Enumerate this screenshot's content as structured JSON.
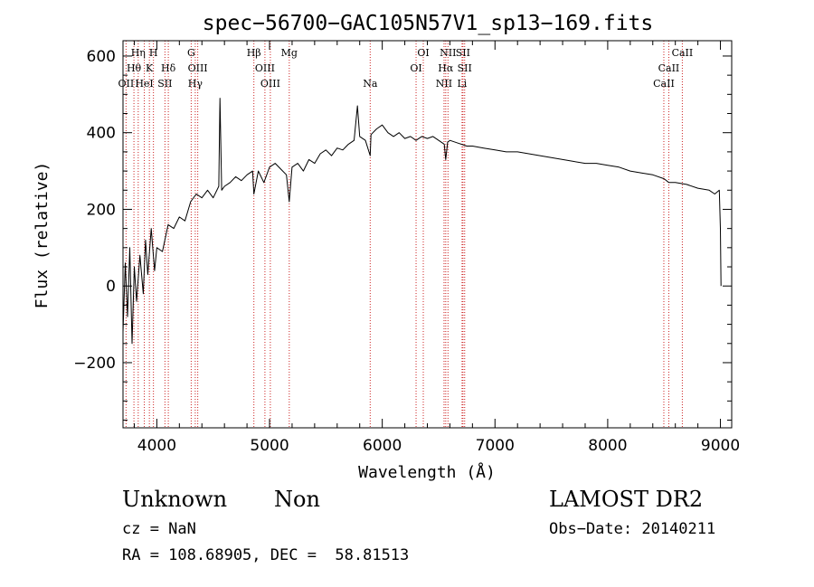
{
  "chart_data": {
    "type": "line",
    "title": "spec−56700−GAC105N57V1_sp13−169.fits",
    "xlabel": "Wavelength (Å)",
    "ylabel": "Flux (relative)",
    "xlim": [
      3700,
      9100
    ],
    "ylim": [
      -370,
      640
    ],
    "x_ticks": [
      4000,
      5000,
      6000,
      7000,
      8000,
      9000
    ],
    "y_ticks": [
      -200,
      0,
      200,
      400,
      600
    ],
    "y_tick_labels": [
      "−200",
      "0",
      "200",
      "400",
      "600"
    ],
    "series": [
      {
        "x": [
          3700,
          3720,
          3740,
          3760,
          3780,
          3800,
          3820,
          3850,
          3880,
          3900,
          3920,
          3950,
          3980,
          4000,
          4050,
          4100,
          4150,
          4200,
          4250,
          4300,
          4350,
          4400,
          4450,
          4500,
          4550,
          4560,
          4575,
          4600,
          4650,
          4700,
          4750,
          4800,
          4850,
          4861,
          4900,
          4950,
          5000,
          5050,
          5100,
          5150,
          5175,
          5200,
          5250,
          5300,
          5350,
          5400,
          5450,
          5500,
          5550,
          5600,
          5650,
          5700,
          5750,
          5780,
          5800,
          5850,
          5893,
          5900,
          5950,
          6000,
          6050,
          6100,
          6150,
          6200,
          6250,
          6300,
          6350,
          6400,
          6450,
          6500,
          6550,
          6563,
          6580,
          6600,
          6650,
          6700,
          6750,
          6800,
          6900,
          7000,
          7100,
          7200,
          7300,
          7400,
          7500,
          7600,
          7700,
          7800,
          7900,
          8000,
          8100,
          8200,
          8300,
          8400,
          8500,
          8542,
          8600,
          8700,
          8800,
          8900,
          8950,
          8990,
          9000,
          9005
        ],
        "y": [
          -120,
          60,
          -80,
          100,
          -150,
          50,
          -40,
          80,
          -20,
          120,
          30,
          150,
          40,
          100,
          90,
          160,
          150,
          180,
          170,
          220,
          240,
          230,
          250,
          230,
          260,
          490,
          250,
          260,
          270,
          285,
          275,
          290,
          300,
          240,
          300,
          270,
          310,
          320,
          305,
          290,
          220,
          310,
          320,
          300,
          330,
          320,
          345,
          355,
          340,
          360,
          355,
          370,
          380,
          470,
          390,
          380,
          340,
          395,
          410,
          420,
          400,
          390,
          400,
          385,
          390,
          380,
          390,
          385,
          390,
          380,
          370,
          330,
          375,
          380,
          375,
          370,
          365,
          365,
          360,
          355,
          350,
          350,
          345,
          340,
          335,
          330,
          325,
          320,
          320,
          315,
          310,
          300,
          295,
          290,
          280,
          270,
          270,
          265,
          255,
          250,
          240,
          250,
          150,
          0
        ]
      }
    ],
    "lines": [
      {
        "label": "Hη",
        "x": 3835,
        "row": 1
      },
      {
        "label": "Hθ",
        "x": 3797,
        "row": 2
      },
      {
        "label": "OII",
        "x": 3727,
        "row": 3
      },
      {
        "label": "H",
        "x": 3970,
        "row": 1
      },
      {
        "label": "K",
        "x": 3934,
        "row": 2
      },
      {
        "label": "HeI",
        "x": 3889,
        "row": 3
      },
      {
        "label": "Hδ",
        "x": 4102,
        "row": 2
      },
      {
        "label": "SII",
        "x": 4072,
        "row": 3
      },
      {
        "label": "G",
        "x": 4305,
        "row": 1
      },
      {
        "label": "OIII",
        "x": 4363,
        "row": 2
      },
      {
        "label": "Hγ",
        "x": 4341,
        "row": 3
      },
      {
        "label": "Hβ",
        "x": 4861,
        "row": 1
      },
      {
        "label": "OIII",
        "x": 4959,
        "row": 2
      },
      {
        "label": "OIII",
        "x": 5007,
        "row": 3
      },
      {
        "label": "Mg",
        "x": 5175,
        "row": 1
      },
      {
        "label": "Na",
        "x": 5893,
        "row": 3
      },
      {
        "label": "OI",
        "x": 6364,
        "row": 1
      },
      {
        "label": "OI",
        "x": 6300,
        "row": 2
      },
      {
        "label": "NII",
        "x": 6583,
        "row": 1
      },
      {
        "label": "Hα",
        "x": 6563,
        "row": 2
      },
      {
        "label": "NII",
        "x": 6548,
        "row": 3
      },
      {
        "label": "SII",
        "x": 6716,
        "row": 1
      },
      {
        "label": "SII",
        "x": 6731,
        "row": 2
      },
      {
        "label": "Li",
        "x": 6708,
        "row": 3
      },
      {
        "label": "CaII",
        "x": 8662,
        "row": 1
      },
      {
        "label": "CaII",
        "x": 8542,
        "row": 2
      },
      {
        "label": "CaII",
        "x": 8498,
        "row": 3
      }
    ]
  },
  "info": {
    "object_class": "Unknown",
    "subclass": "Non",
    "survey": "LAMOST DR2",
    "redshift": "cz = NaN",
    "obs_date": "Obs−Date: 20140211",
    "coords": "RA = 108.68905, DEC =  58.81513"
  },
  "colors": {
    "line": "#000000",
    "marker_lines": "#cc2222"
  }
}
